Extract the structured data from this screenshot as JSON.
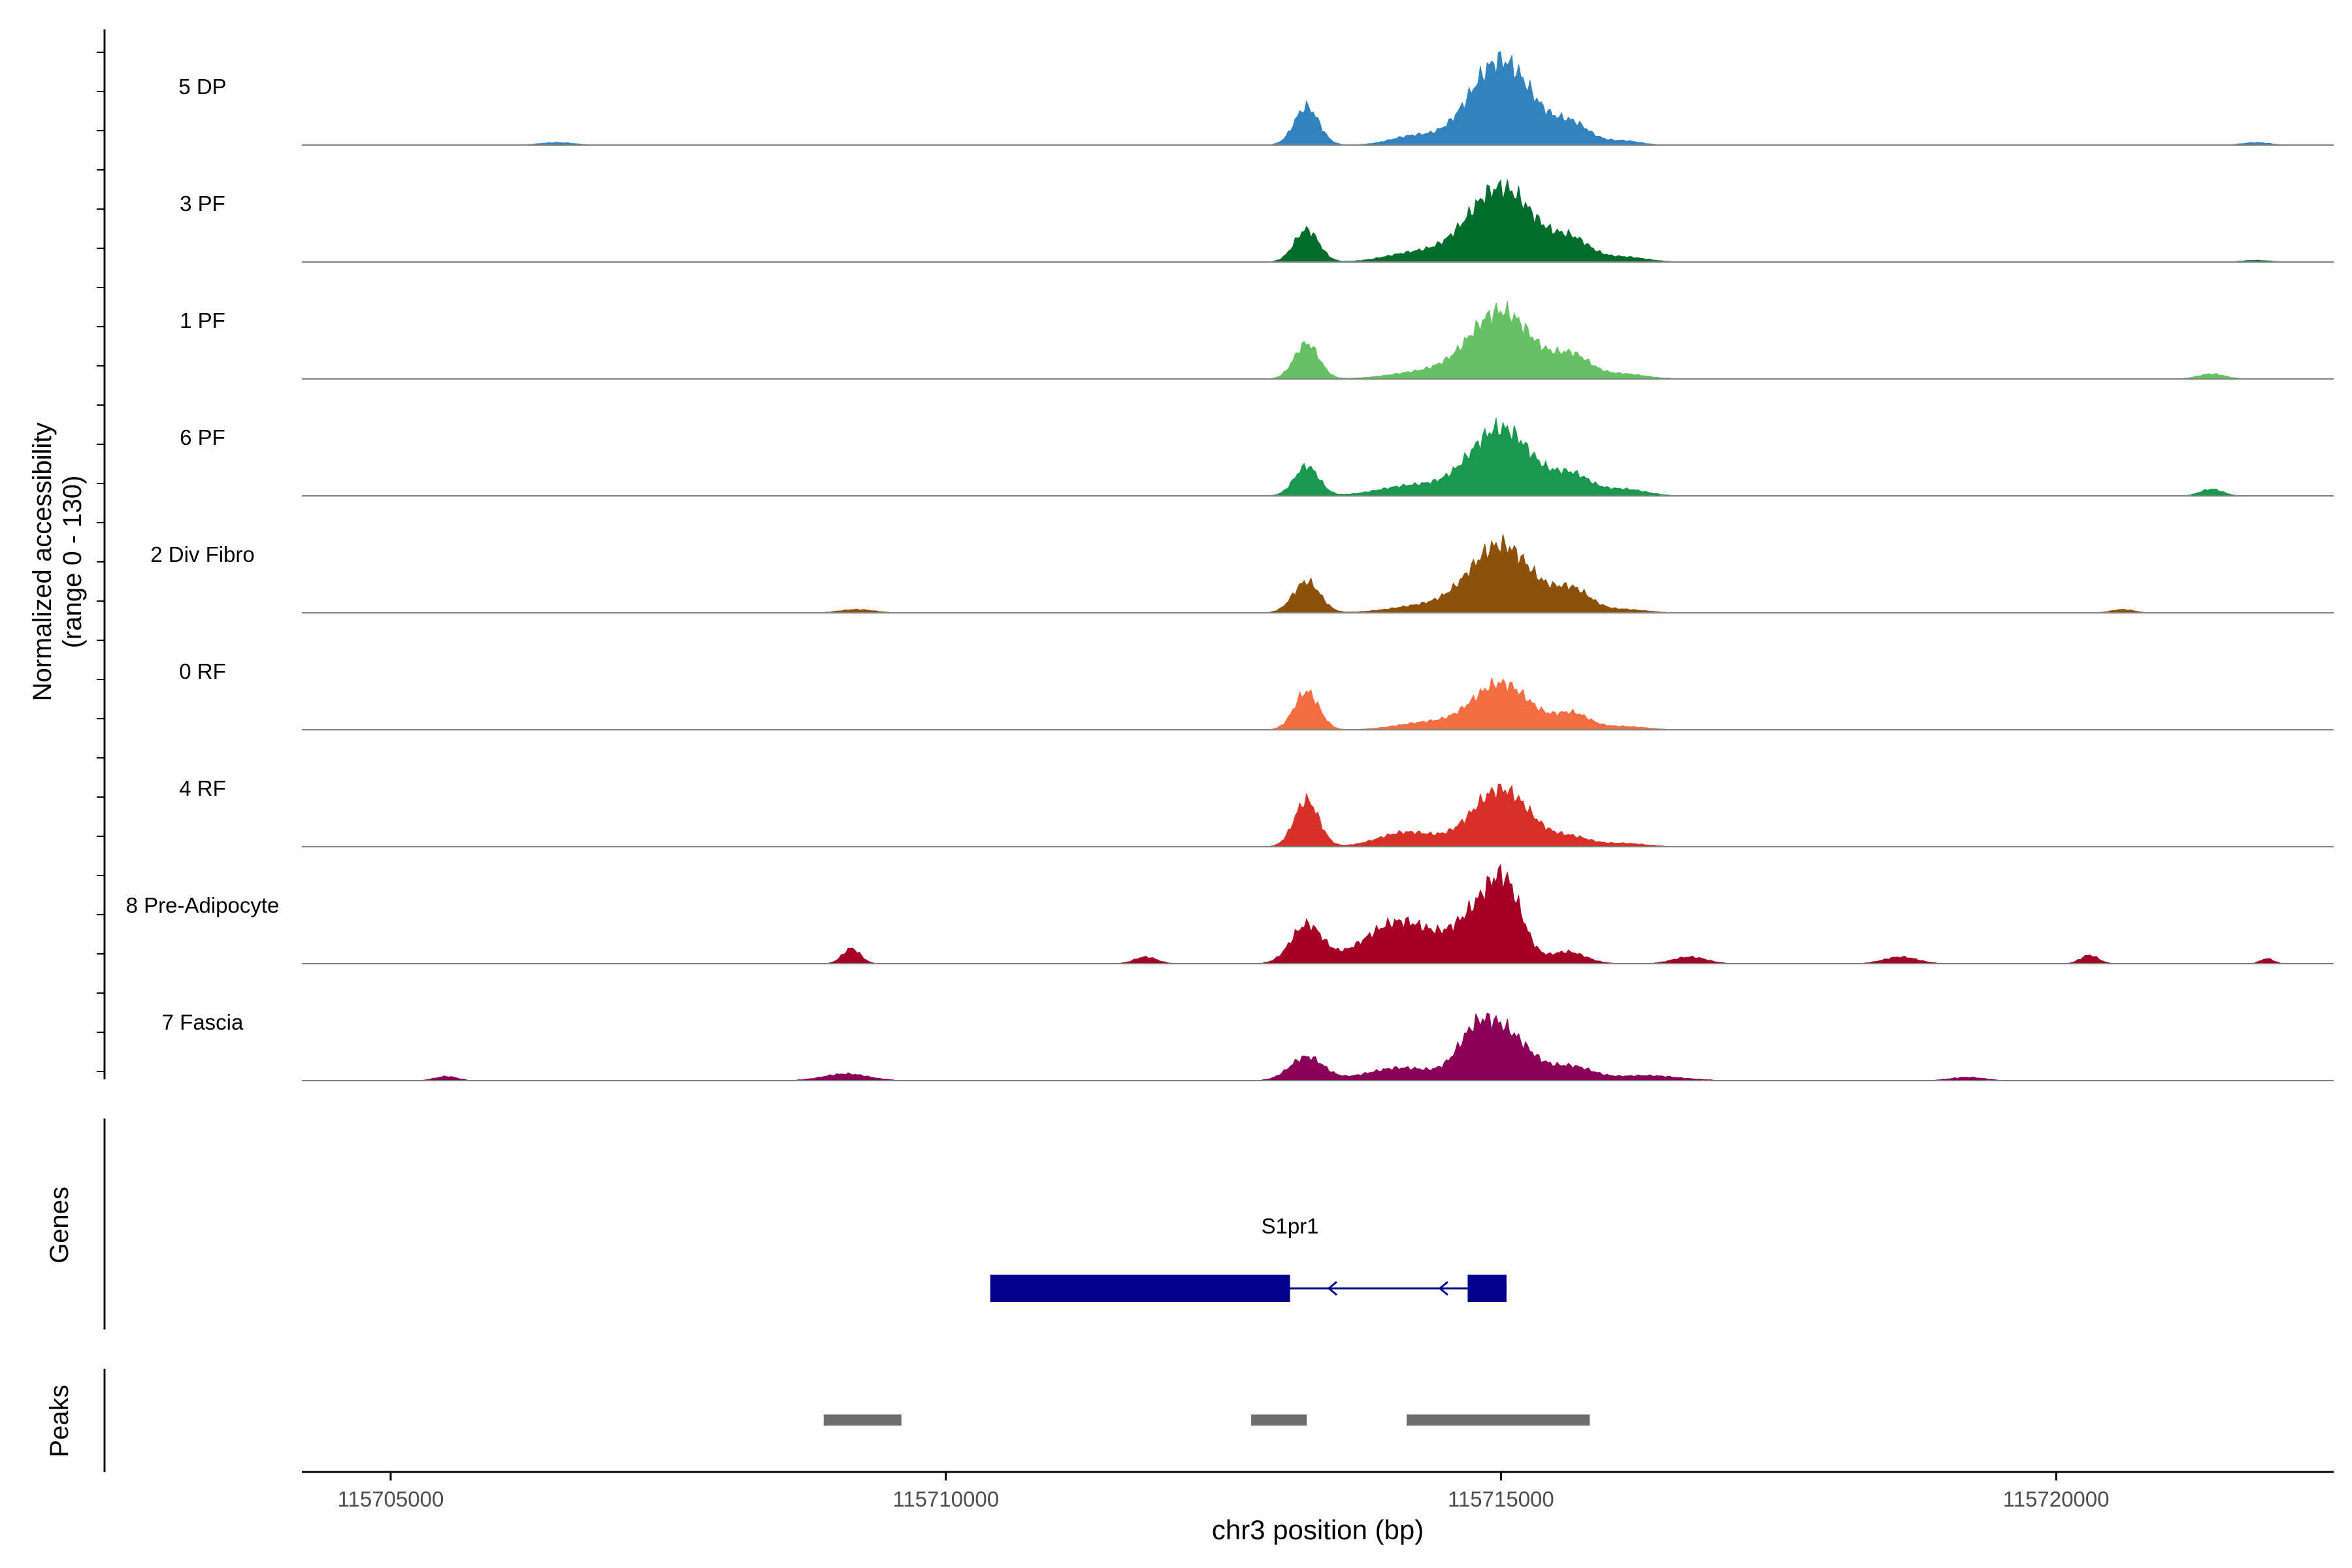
{
  "chart_data": {
    "type": "area",
    "xlabel": "chr3 position (bp)",
    "ylabel_line1": "Normalized accessibility",
    "ylabel_line2": "(range 0 - 130)",
    "yrange": [
      0,
      130
    ],
    "xlim": [
      115704200,
      115722500
    ],
    "xticks": [
      115705000,
      115710000,
      115715000,
      115720000
    ],
    "xtick_labels": [
      "115705000",
      "115710000",
      "115715000",
      "115720000"
    ],
    "tracks": [
      {
        "name": "5 DP",
        "color": "#3182bd",
        "peaks": [
          [
            115706500,
            3,
            150
          ],
          [
            115713250,
            45,
            110
          ],
          [
            115714200,
            10,
            200
          ],
          [
            115715000,
            100,
            280
          ],
          [
            115715650,
            22,
            160
          ],
          [
            115716100,
            5,
            150
          ],
          [
            115721800,
            3,
            120
          ]
        ]
      },
      {
        "name": "3 PF",
        "color": "#006d2c",
        "peaks": [
          [
            115713250,
            38,
            110
          ],
          [
            115714200,
            10,
            250
          ],
          [
            115715000,
            88,
            300
          ],
          [
            115715650,
            22,
            160
          ],
          [
            115716100,
            6,
            200
          ],
          [
            115721800,
            2,
            120
          ]
        ]
      },
      {
        "name": "1 PF",
        "color": "#66c164",
        "peaks": [
          [
            115713250,
            42,
            110
          ],
          [
            115714300,
            8,
            300
          ],
          [
            115715000,
            80,
            280
          ],
          [
            115715650,
            25,
            160
          ],
          [
            115716100,
            6,
            200
          ],
          [
            115721400,
            6,
            120
          ]
        ]
      },
      {
        "name": "6 PF",
        "color": "#1a9850",
        "peaks": [
          [
            115713250,
            35,
            110
          ],
          [
            115714200,
            12,
            300
          ],
          [
            115715000,
            80,
            280
          ],
          [
            115715650,
            22,
            160
          ],
          [
            115716100,
            8,
            200
          ],
          [
            115721400,
            8,
            100
          ]
        ]
      },
      {
        "name": "2 Div Fibro",
        "color": "#8c510a",
        "peaks": [
          [
            115709200,
            4,
            150
          ],
          [
            115713250,
            37,
            120
          ],
          [
            115714300,
            8,
            300
          ],
          [
            115715000,
            80,
            280
          ],
          [
            115715650,
            25,
            160
          ],
          [
            115716100,
            4,
            200
          ],
          [
            115720600,
            4,
            100
          ]
        ]
      },
      {
        "name": "0 RF",
        "color": "#f46d43",
        "peaks": [
          [
            115713250,
            45,
            110
          ],
          [
            115714300,
            8,
            250
          ],
          [
            115715000,
            55,
            260
          ],
          [
            115715650,
            18,
            150
          ],
          [
            115716100,
            4,
            200
          ]
        ]
      },
      {
        "name": "4 RF",
        "color": "#d73027",
        "peaks": [
          [
            115713250,
            55,
            110
          ],
          [
            115714150,
            17,
            250
          ],
          [
            115715000,
            68,
            260
          ],
          [
            115715650,
            10,
            160
          ],
          [
            115716100,
            4,
            200
          ]
        ]
      },
      {
        "name": "8 Pre-Adipocyte",
        "color": "#a50026",
        "peaks": [
          [
            115709150,
            18,
            80
          ],
          [
            115711800,
            8,
            100
          ],
          [
            115713250,
            45,
            140
          ],
          [
            115714100,
            50,
            320
          ],
          [
            115714800,
            55,
            200
          ],
          [
            115715050,
            75,
            150
          ],
          [
            115715600,
            14,
            160
          ],
          [
            115716700,
            8,
            150
          ],
          [
            115718600,
            8,
            150
          ],
          [
            115720300,
            10,
            80
          ],
          [
            115721900,
            6,
            60
          ]
        ]
      },
      {
        "name": "7 Fascia",
        "color": "#8a0058",
        "peaks": [
          [
            115705500,
            5,
            100
          ],
          [
            115709100,
            8,
            200
          ],
          [
            115713250,
            28,
            150
          ],
          [
            115714100,
            15,
            300
          ],
          [
            115714750,
            28,
            150
          ],
          [
            115715000,
            60,
            250
          ],
          [
            115715650,
            15,
            180
          ],
          [
            115716300,
            6,
            300
          ],
          [
            115719200,
            4,
            150
          ]
        ]
      }
    ],
    "genes_label": "Genes",
    "gene": {
      "name": "S1pr1",
      "tx_start": 115710400,
      "tx_end": 115715050,
      "exon1": [
        115710400,
        115713100
      ],
      "exon2": [
        115714700,
        115715050
      ],
      "strand": "-",
      "color": "#00008b"
    },
    "peaks_label": "Peaks",
    "peak_regions": [
      [
        115708900,
        115709600
      ],
      [
        115712750,
        115713250
      ],
      [
        115714150,
        115715800
      ]
    ]
  }
}
